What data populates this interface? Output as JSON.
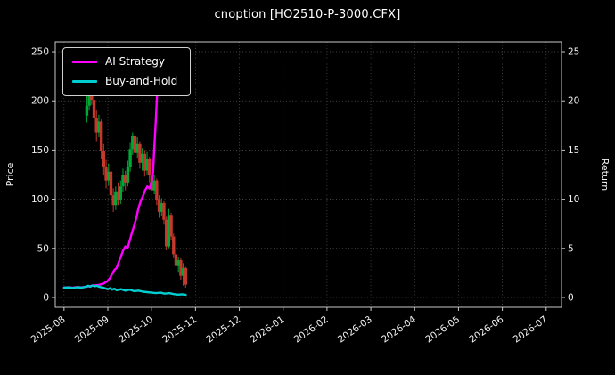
{
  "chart_data": {
    "type": "candlestick+line",
    "title": "cnoption [HO2510-P-3000.CFX]",
    "xlabel": "",
    "ylabel_left": "Price",
    "ylabel_right": "Return",
    "x_unit": "months since 2025-08",
    "x_tick_labels": [
      "2025-08",
      "2025-09",
      "2025-10",
      "2025-11",
      "2025-12",
      "2026-01",
      "2026-02",
      "2026-03",
      "2026-04",
      "2026-05",
      "2026-06",
      "2026-07"
    ],
    "x_domain_months": [
      -0.2,
      11.35
    ],
    "y_left": {
      "min": -10,
      "max": 260,
      "ticks": [
        0,
        50,
        100,
        150,
        200,
        250
      ]
    },
    "y_right": {
      "ticks": [
        0,
        5,
        10,
        15,
        20,
        25
      ]
    },
    "grid": true,
    "legend_position": "upper-left",
    "colors": {
      "background": "#000000",
      "text": "#f2f2f2",
      "grid": "#5a5a5a",
      "spine": "#c8c8c8",
      "up_candle": "#00a838",
      "down_candle": "#c4392b",
      "ai_strategy": "#ff00ff",
      "buy_and_hold": "#00ced1"
    },
    "series": [
      {
        "name": "AI Strategy",
        "type": "line",
        "color_key": "ai_strategy",
        "points": [
          [
            0.0,
            10
          ],
          [
            0.1,
            10.3
          ],
          [
            0.2,
            10
          ],
          [
            0.3,
            10.6
          ],
          [
            0.4,
            10.2
          ],
          [
            0.5,
            10.8
          ],
          [
            0.55,
            11.2
          ],
          [
            0.6,
            11.6
          ],
          [
            0.7,
            12.2
          ],
          [
            0.8,
            12.8
          ],
          [
            0.9,
            14
          ],
          [
            0.95,
            15.5
          ],
          [
            1.0,
            17
          ],
          [
            1.05,
            20
          ],
          [
            1.1,
            24
          ],
          [
            1.15,
            28
          ],
          [
            1.2,
            30
          ],
          [
            1.25,
            36
          ],
          [
            1.3,
            42
          ],
          [
            1.35,
            48
          ],
          [
            1.4,
            52
          ],
          [
            1.45,
            50
          ],
          [
            1.5,
            58
          ],
          [
            1.55,
            66
          ],
          [
            1.6,
            73
          ],
          [
            1.65,
            81
          ],
          [
            1.7,
            91
          ],
          [
            1.75,
            98
          ],
          [
            1.8,
            103
          ],
          [
            1.85,
            109
          ],
          [
            1.9,
            113
          ],
          [
            1.95,
            111
          ],
          [
            2.0,
            118
          ],
          [
            2.03,
            127
          ],
          [
            2.06,
            152
          ],
          [
            2.09,
            176
          ],
          [
            2.12,
            204
          ],
          [
            2.15,
            232
          ]
        ]
      },
      {
        "name": "Buy-and-Hold",
        "type": "line",
        "color_key": "buy_and_hold",
        "points": [
          [
            0.0,
            10
          ],
          [
            0.1,
            10.2
          ],
          [
            0.2,
            9.7
          ],
          [
            0.3,
            10.4
          ],
          [
            0.4,
            9.9
          ],
          [
            0.5,
            10.8
          ],
          [
            0.55,
            11.8
          ],
          [
            0.6,
            10.9
          ],
          [
            0.65,
            12.3
          ],
          [
            0.7,
            11.4
          ],
          [
            0.75,
            11.9
          ],
          [
            0.8,
            10.8
          ],
          [
            0.9,
            9.8
          ],
          [
            1.0,
            8.4
          ],
          [
            1.05,
            9.4
          ],
          [
            1.1,
            7.9
          ],
          [
            1.15,
            8.9
          ],
          [
            1.2,
            7.4
          ],
          [
            1.3,
            8.4
          ],
          [
            1.4,
            6.9
          ],
          [
            1.5,
            7.9
          ],
          [
            1.6,
            6.4
          ],
          [
            1.7,
            6.9
          ],
          [
            1.8,
            5.9
          ],
          [
            1.9,
            5.4
          ],
          [
            2.0,
            4.9
          ],
          [
            2.1,
            4.4
          ],
          [
            2.2,
            4.9
          ],
          [
            2.3,
            3.9
          ],
          [
            2.4,
            4.4
          ],
          [
            2.5,
            3.4
          ],
          [
            2.6,
            2.9
          ],
          [
            2.7,
            3.2
          ],
          [
            2.78,
            2.7
          ]
        ]
      }
    ],
    "candles_format": [
      "x_month",
      "open",
      "high",
      "low",
      "close"
    ],
    "candles": [
      [
        0.52,
        185,
        205,
        178,
        195
      ],
      [
        0.575,
        195,
        228,
        190,
        212
      ],
      [
        0.63,
        212,
        218,
        196,
        201
      ],
      [
        0.685,
        201,
        207,
        176,
        183
      ],
      [
        0.74,
        183,
        191,
        159,
        168
      ],
      [
        0.795,
        168,
        186,
        163,
        179
      ],
      [
        0.85,
        179,
        181,
        141,
        149
      ],
      [
        0.905,
        149,
        156,
        124,
        133
      ],
      [
        0.96,
        133,
        140,
        111,
        119
      ],
      [
        1.015,
        119,
        136,
        114,
        128
      ],
      [
        1.07,
        128,
        131,
        97,
        104
      ],
      [
        1.125,
        104,
        111,
        87,
        94
      ],
      [
        1.18,
        94,
        113,
        89,
        108
      ],
      [
        1.235,
        108,
        116,
        94,
        99
      ],
      [
        1.29,
        99,
        119,
        95,
        113
      ],
      [
        1.345,
        113,
        131,
        107,
        125
      ],
      [
        1.4,
        125,
        129,
        109,
        117
      ],
      [
        1.455,
        117,
        139,
        113,
        133
      ],
      [
        1.51,
        133,
        158,
        128,
        151
      ],
      [
        1.565,
        151,
        168,
        145,
        164
      ],
      [
        1.62,
        164,
        166,
        139,
        147
      ],
      [
        1.675,
        147,
        163,
        142,
        156
      ],
      [
        1.73,
        156,
        159,
        131,
        137
      ],
      [
        1.785,
        137,
        152,
        129,
        146
      ],
      [
        1.84,
        146,
        150,
        123,
        129
      ],
      [
        1.895,
        129,
        148,
        125,
        141
      ],
      [
        1.95,
        141,
        143,
        117,
        124
      ],
      [
        2.005,
        124,
        128,
        103,
        109
      ],
      [
        2.06,
        109,
        125,
        105,
        119
      ],
      [
        2.115,
        119,
        121,
        94,
        99
      ],
      [
        2.17,
        99,
        104,
        81,
        87
      ],
      [
        2.225,
        87,
        101,
        83,
        96
      ],
      [
        2.28,
        96,
        98,
        74,
        79
      ],
      [
        2.335,
        79,
        82,
        48,
        52
      ],
      [
        2.39,
        52,
        90,
        50,
        84
      ],
      [
        2.445,
        84,
        86,
        58,
        62
      ],
      [
        2.5,
        62,
        65,
        40,
        44
      ],
      [
        2.555,
        44,
        48,
        28,
        32
      ],
      [
        2.61,
        32,
        41,
        26,
        38
      ],
      [
        2.665,
        38,
        40,
        18,
        22
      ],
      [
        2.72,
        22,
        35,
        12,
        30
      ],
      [
        2.775,
        30,
        31,
        10,
        13
      ]
    ]
  }
}
